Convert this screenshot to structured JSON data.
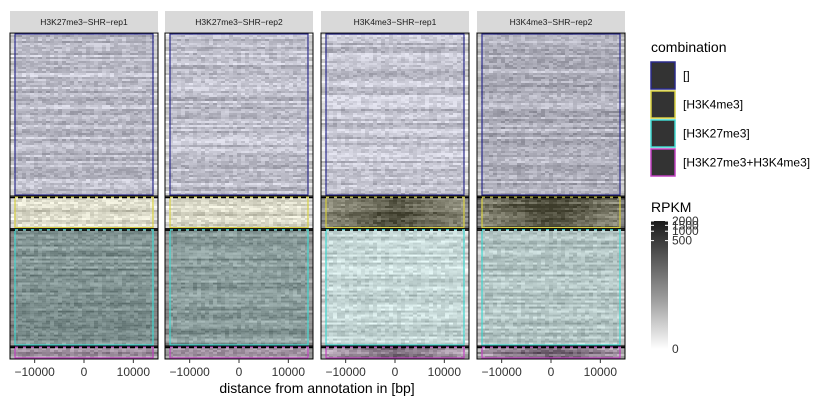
{
  "chart_data": {
    "type": "heatmap",
    "facets": [
      "H3K27me3−SHR−rep1",
      "H3K27me3−SHR−rep2",
      "H3K4me3−SHR−rep1",
      "H3K4me3−SHR−rep2"
    ],
    "xlabel": "distance from annotation in [bp]",
    "x_ticks": [
      -10000,
      0,
      10000
    ],
    "x_tick_labels": [
      "−10000",
      "0",
      "10000"
    ],
    "xlim": [
      -15000,
      15000
    ],
    "groups": [
      {
        "name": "[]",
        "color": "#2b2b8c",
        "row_fraction": 0.5,
        "intensity": [
          0.22,
          0.2,
          0.18,
          0.28
        ]
      },
      {
        "name": "[H3K4me3]",
        "color": "#d8d040",
        "row_fraction": 0.1,
        "intensity": [
          0.18,
          0.18,
          0.55,
          0.62
        ]
      },
      {
        "name": "[H3K27me3]",
        "color": "#40d8d0",
        "row_fraction": 0.36,
        "intensity": [
          0.55,
          0.52,
          0.2,
          0.3
        ]
      },
      {
        "name": "[H3K27me3+H3K4me3]",
        "color": "#c040c0",
        "row_fraction": 0.04,
        "intensity": [
          0.45,
          0.45,
          0.35,
          0.4
        ]
      }
    ],
    "legend": {
      "title": "combination",
      "placement": "right"
    },
    "colorbar": {
      "title": "RPKM",
      "min": 0,
      "max": 2000,
      "tick_values": [
        0,
        500,
        1000,
        1500,
        2000
      ],
      "tick_labels": [
        "0",
        "500",
        "1000",
        "1500",
        "2000"
      ]
    }
  }
}
